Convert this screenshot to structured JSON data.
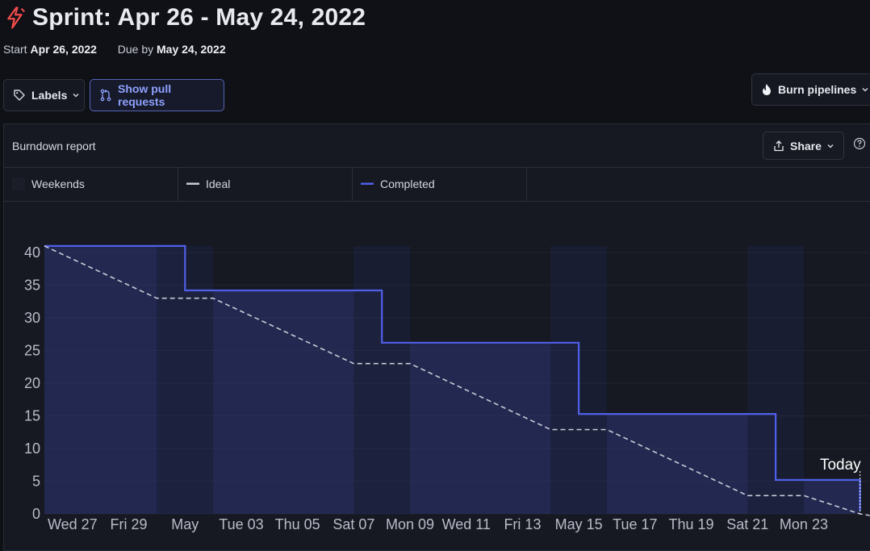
{
  "header": {
    "title": "Sprint: Apr 26 - May 24, 2022",
    "icon": "sprint-bolt-icon",
    "start_label": "Start",
    "start_date": "Apr 26, 2022",
    "due_label": "Due by",
    "due_date": "May 24, 2022"
  },
  "toolbar": {
    "labels_button": "Labels",
    "pull_requests_button": "Show pull requests",
    "burn_pipelines_button": "Burn pipelines"
  },
  "report": {
    "title": "Burndown report",
    "share_button": "Share"
  },
  "legend": {
    "weekends": "Weekends",
    "ideal": "Ideal",
    "completed": "Completed"
  },
  "colors": {
    "completed": "#4f5fe8",
    "completed_fill": "#222850",
    "ideal": "#c8cbd6",
    "weekend": "#1b1f38",
    "accent_icon": "#f04a4a",
    "pr_button_text": "#8fa1ff"
  },
  "chart_data": {
    "type": "area",
    "ylim": [
      0,
      41
    ],
    "yticks": [
      0,
      5,
      10,
      15,
      20,
      25,
      30,
      35,
      40
    ],
    "x_start": "2022-04-26",
    "x_end": "2022-05-24",
    "xtick_labels": [
      {
        "date": "2022-04-27",
        "label": "Wed 27"
      },
      {
        "date": "2022-04-29",
        "label": "Fri 29"
      },
      {
        "date": "2022-05-01",
        "label": "May"
      },
      {
        "date": "2022-05-03",
        "label": "Tue 03"
      },
      {
        "date": "2022-05-05",
        "label": "Thu 05"
      },
      {
        "date": "2022-05-07",
        "label": "Sat 07"
      },
      {
        "date": "2022-05-09",
        "label": "Mon 09"
      },
      {
        "date": "2022-05-11",
        "label": "Wed 11"
      },
      {
        "date": "2022-05-13",
        "label": "Fri 13"
      },
      {
        "date": "2022-05-15",
        "label": "May 15"
      },
      {
        "date": "2022-05-17",
        "label": "Tue 17"
      },
      {
        "date": "2022-05-19",
        "label": "Thu 19"
      },
      {
        "date": "2022-05-21",
        "label": "Sat 21"
      },
      {
        "date": "2022-05-23",
        "label": "Mon 23"
      }
    ],
    "weekends": [
      [
        "2022-04-30",
        "2022-05-02"
      ],
      [
        "2022-05-07",
        "2022-05-09"
      ],
      [
        "2022-05-14",
        "2022-05-16"
      ],
      [
        "2022-05-21",
        "2022-05-23"
      ]
    ],
    "series": [
      {
        "name": "Completed",
        "step": true,
        "points": [
          {
            "x": "2022-04-26",
            "y": 41
          },
          {
            "x": "2022-05-01",
            "y": 34.2
          },
          {
            "x": "2022-05-08",
            "y": 26.2
          },
          {
            "x": "2022-05-15",
            "y": 15.3
          },
          {
            "x": "2022-05-22",
            "y": 5.2
          },
          {
            "x": "2022-05-25",
            "y": 0.5
          }
        ]
      },
      {
        "name": "Ideal",
        "dashed": true,
        "points": [
          {
            "x": "2022-04-26",
            "y": 41
          },
          {
            "x": "2022-04-30",
            "y": 33
          },
          {
            "x": "2022-05-02",
            "y": 33
          },
          {
            "x": "2022-05-07",
            "y": 23
          },
          {
            "x": "2022-05-09",
            "y": 23
          },
          {
            "x": "2022-05-14",
            "y": 12.9
          },
          {
            "x": "2022-05-16",
            "y": 12.9
          },
          {
            "x": "2022-05-21",
            "y": 2.8
          },
          {
            "x": "2022-05-23",
            "y": 2.8
          },
          {
            "x": "2022-05-25",
            "y": 0
          }
        ]
      }
    ],
    "today_label": "Today",
    "today_date": "2022-05-25"
  }
}
